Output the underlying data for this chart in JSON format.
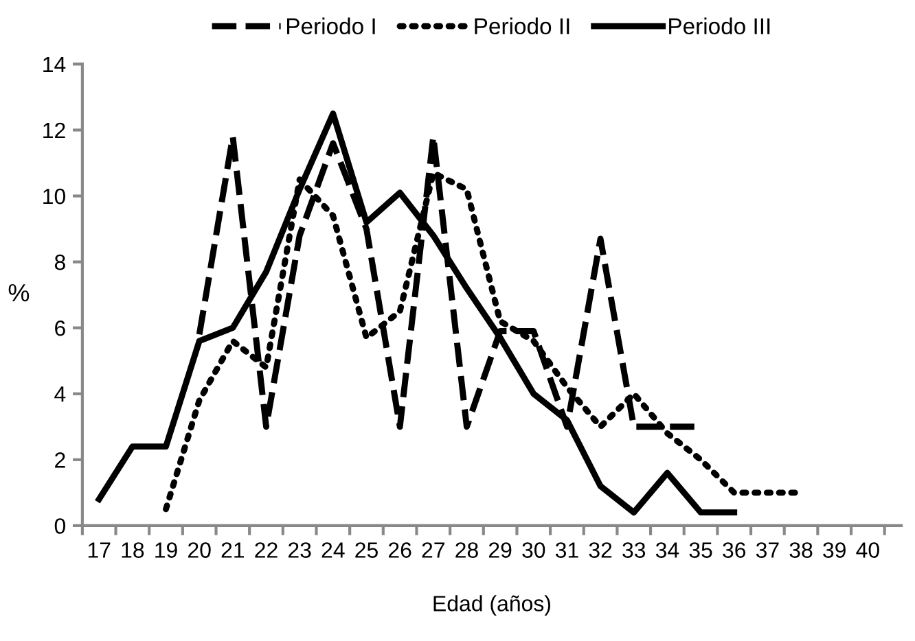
{
  "chart_data": {
    "type": "line",
    "xlabel": "Edad (años)",
    "ylabel": "%",
    "categories": [
      "17",
      "18",
      "19",
      "20",
      "21",
      "22",
      "23",
      "24",
      "25",
      "26",
      "27",
      "28",
      "29",
      "30",
      "31",
      "32",
      "33",
      "34",
      "35",
      "36",
      "37",
      "38",
      "39",
      "40"
    ],
    "ylim": [
      0,
      14
    ],
    "yticks": [
      0,
      2,
      4,
      6,
      8,
      10,
      12,
      14
    ],
    "grid": false,
    "legend": "top",
    "marker": "none",
    "series": [
      {
        "name": "Periodo I",
        "color": "#000000",
        "line_style": "dashed",
        "values": [
          null,
          null,
          null,
          5.8,
          11.8,
          3.0,
          8.8,
          11.6,
          9.0,
          3.0,
          11.8,
          3.0,
          5.9,
          5.9,
          3.0,
          8.7,
          3.0,
          3.0,
          3.0,
          null,
          null,
          null,
          null,
          null
        ]
      },
      {
        "name": "Periodo II",
        "color": "#000000",
        "line_style": "dotted",
        "values": [
          null,
          null,
          0.5,
          3.8,
          5.6,
          4.8,
          10.5,
          9.4,
          5.7,
          6.5,
          10.7,
          10.2,
          6.2,
          5.6,
          4.2,
          3.0,
          4.0,
          2.8,
          2.0,
          1.0,
          1.0,
          1.0,
          null,
          null
        ]
      },
      {
        "name": "Periodo III",
        "color": "#000000",
        "line_style": "solid",
        "values": [
          0.8,
          2.4,
          2.4,
          5.6,
          6.0,
          7.7,
          10.2,
          12.5,
          9.2,
          10.1,
          8.8,
          7.2,
          5.7,
          4.0,
          3.2,
          1.2,
          0.4,
          1.6,
          0.4,
          0.4,
          null,
          null,
          null,
          null
        ]
      }
    ]
  }
}
